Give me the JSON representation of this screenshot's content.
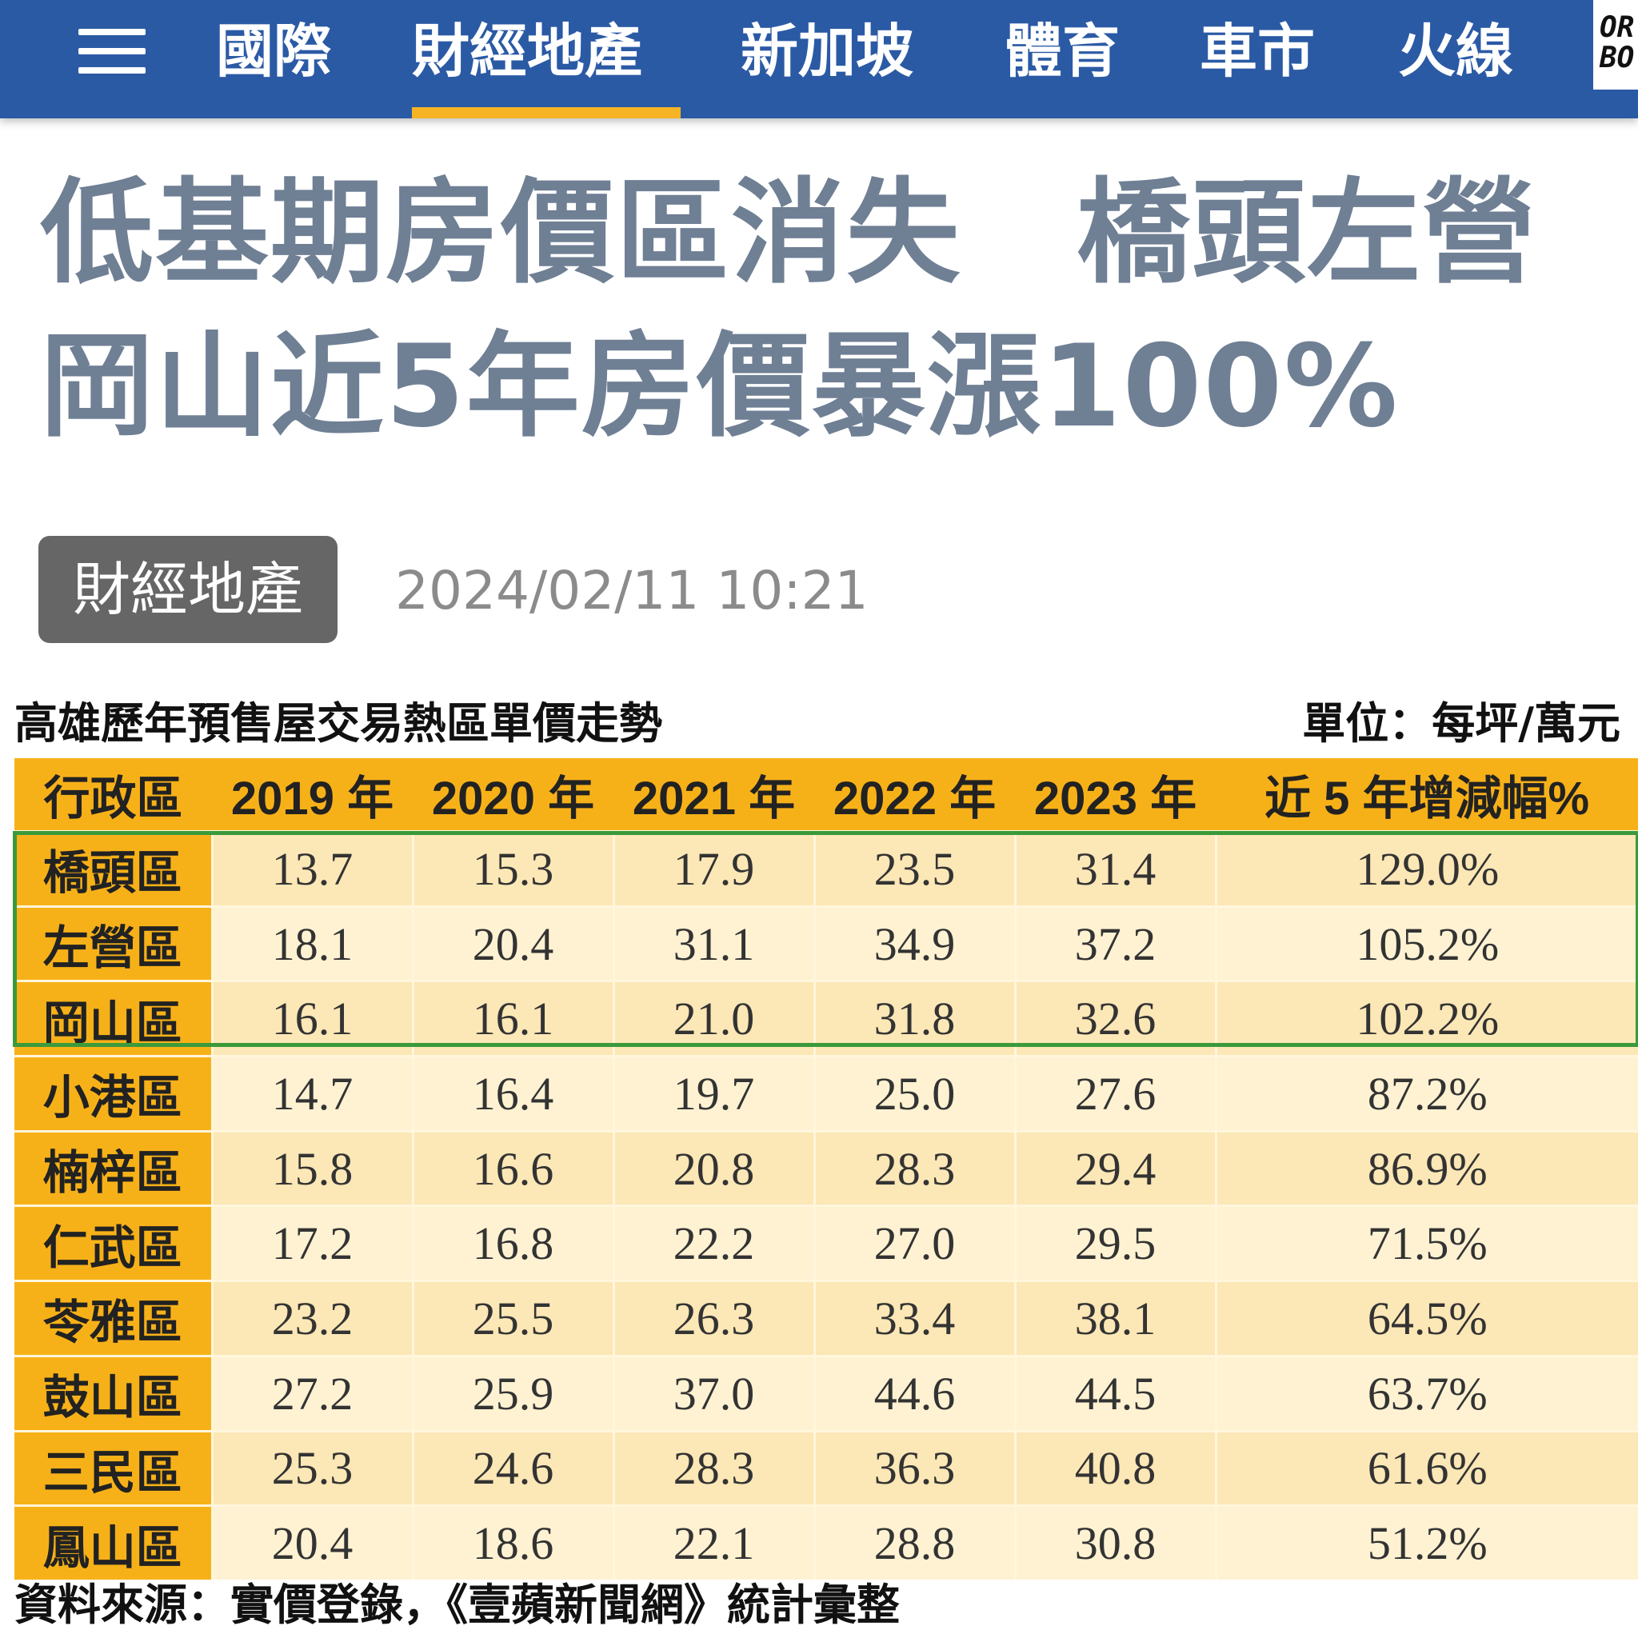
{
  "nav": {
    "items": [
      "國際",
      "財經地產",
      "新加坡",
      "體育",
      "車市",
      "火線"
    ],
    "active_index": 1,
    "logo_text": [
      "OR",
      "BO"
    ]
  },
  "article": {
    "headline_line1": "低基期房價區消失　橋頭左營",
    "headline_line2": "岡山近5年房價暴漲100%",
    "category": "財經地產",
    "timestamp": "2024/02/11 10:21"
  },
  "table": {
    "title": "高雄歷年預售屋交易熱區單價走勢",
    "unit": "單位：每坪/萬元",
    "headers": [
      "行政區",
      "2019 年",
      "2020 年",
      "2021 年",
      "2022 年",
      "2023 年",
      "近 5 年增減幅%"
    ],
    "rows": [
      [
        "橋頭區",
        "13.7",
        "15.3",
        "17.9",
        "23.5",
        "31.4",
        "129.0%"
      ],
      [
        "左營區",
        "18.1",
        "20.4",
        "31.1",
        "34.9",
        "37.2",
        "105.2%"
      ],
      [
        "岡山區",
        "16.1",
        "16.1",
        "21.0",
        "31.8",
        "32.6",
        "102.2%"
      ],
      [
        "小港區",
        "14.7",
        "16.4",
        "19.7",
        "25.0",
        "27.6",
        "87.2%"
      ],
      [
        "楠梓區",
        "15.8",
        "16.6",
        "20.8",
        "28.3",
        "29.4",
        "86.9%"
      ],
      [
        "仁武區",
        "17.2",
        "16.8",
        "22.2",
        "27.0",
        "29.5",
        "71.5%"
      ],
      [
        "苓雅區",
        "23.2",
        "25.5",
        "26.3",
        "33.4",
        "38.1",
        "64.5%"
      ],
      [
        "鼓山區",
        "27.2",
        "25.9",
        "37.0",
        "44.6",
        "44.5",
        "63.7%"
      ],
      [
        "三民區",
        "25.3",
        "24.6",
        "28.3",
        "36.3",
        "40.8",
        "61.6%"
      ],
      [
        "鳳山區",
        "20.4",
        "18.6",
        "22.1",
        "28.8",
        "30.8",
        "51.2%"
      ]
    ],
    "source": "資料來源：實價登錄，《壹蘋新聞網》統計彙整"
  },
  "colors": {
    "nav_bg": "#2b5aa5",
    "nav_active_underline": "#f6b323",
    "headline": "#6f7f94",
    "table_header": "#f7b118",
    "highlight_border": "#3b9a3b"
  }
}
